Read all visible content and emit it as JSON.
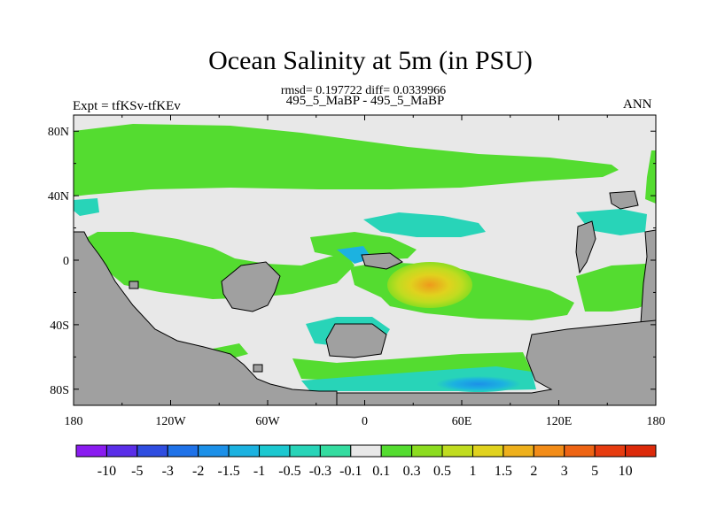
{
  "chart_data": {
    "type": "heatmap",
    "title": "Ocean Salinity at 5m (in PSU)",
    "subtitle": "rmsd= 0.197722 diff= 0.0339966",
    "comparison": "495_5_MaBP - 495_5_MaBP",
    "left_label": "Expt = tfKSv-tfKEv",
    "right_label": "ANN",
    "x_ticks": [
      "180",
      "120W",
      "60W",
      "0",
      "60E",
      "120E",
      "180"
    ],
    "y_ticks": [
      "80N",
      "40N",
      "0",
      "40S",
      "80S"
    ],
    "xlim": [
      -180,
      180
    ],
    "ylim": [
      -90,
      90
    ],
    "colorbar": {
      "labels": [
        "-10",
        "-5",
        "-3",
        "-2",
        "-1.5",
        "-1",
        "-0.5",
        "-0.3",
        "-0.1",
        "0.1",
        "0.3",
        "0.5",
        "1",
        "1.5",
        "2",
        "3",
        "5",
        "10"
      ],
      "colors": [
        "#8a1cf0",
        "#5a2ee8",
        "#2f4de0",
        "#1f72e8",
        "#1c90e8",
        "#1cb2e0",
        "#1cc8d0",
        "#28d4b8",
        "#34dca0",
        "#e8e8e8",
        "#54dc30",
        "#8cdc20",
        "#c0dc20",
        "#e0d21e",
        "#eeb01c",
        "#f28c18",
        "#ee6414",
        "#e63c10",
        "#dc2a0a"
      ]
    },
    "land_color": "#a0a0a0",
    "neutral_color": "#e8e8e8"
  }
}
